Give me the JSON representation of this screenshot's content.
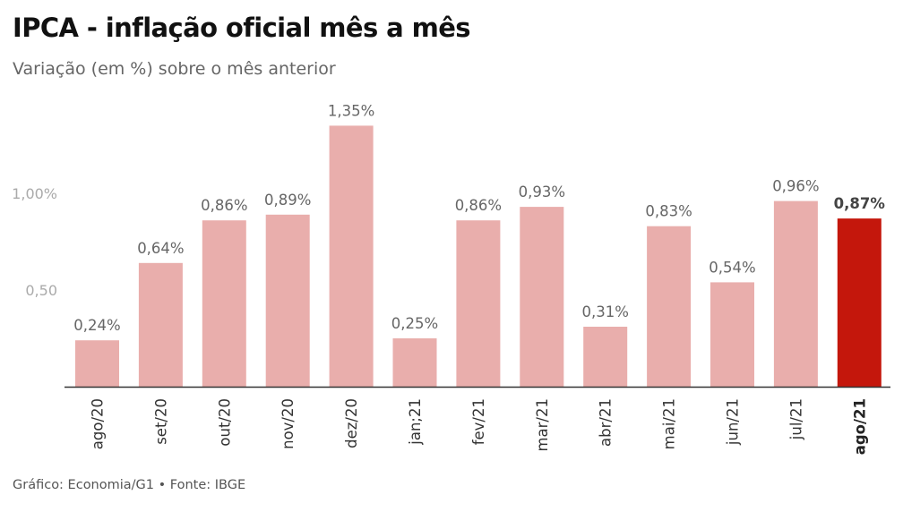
{
  "header": {
    "title": "IPCA - inflação oficial mês a mês",
    "subtitle": "Variação (em %) sobre o mês anterior"
  },
  "footer": {
    "source": "Gráfico: Economia/G1 • Fonte: IBGE"
  },
  "colors": {
    "bar": "#e9aeac",
    "highlight": "#c4170c",
    "label": "#666666",
    "tick": "#aaaaaa",
    "axis": "#333333"
  },
  "chart_data": {
    "type": "bar",
    "title": "IPCA - inflação oficial mês a mês",
    "subtitle": "Variação (em %) sobre o mês anterior",
    "categories": [
      "ago/20",
      "set/20",
      "out/20",
      "nov/20",
      "dez/20",
      "jan;21",
      "fev/21",
      "mar/21",
      "abr/21",
      "mai/21",
      "jun/21",
      "jul/21",
      "ago/21"
    ],
    "values": [
      0.24,
      0.64,
      0.86,
      0.89,
      1.35,
      0.25,
      0.86,
      0.93,
      0.31,
      0.83,
      0.54,
      0.96,
      0.87
    ],
    "value_labels": [
      "0,24%",
      "0,64%",
      "0,86%",
      "0,89%",
      "1,35%",
      "0,25%",
      "0,86%",
      "0,93%",
      "0,31%",
      "0,83%",
      "0,54%",
      "0,96%",
      "0,87%"
    ],
    "highlight_index": 12,
    "yticks": [
      0.5,
      1.0
    ],
    "ytick_labels": [
      "0,50",
      "1,00%"
    ],
    "ylim": [
      0,
      1.45
    ],
    "xlabel": "",
    "ylabel": "",
    "grid": false,
    "legend": "none"
  }
}
